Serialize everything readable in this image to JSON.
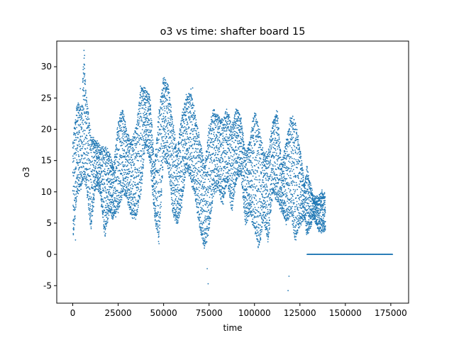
{
  "chart_data": {
    "type": "scatter",
    "title": "o3 vs time: shafter board 15",
    "xlabel": "time",
    "ylabel": "o3",
    "xlim": [
      -8800,
      184800
    ],
    "ylim": [
      -7.8,
      34.1
    ],
    "xticks": [
      0,
      25000,
      50000,
      75000,
      100000,
      125000,
      150000,
      175000
    ],
    "yticks": [
      -5,
      0,
      5,
      10,
      15,
      20,
      25,
      30
    ],
    "grid": false,
    "marker_color": "#1f77b4",
    "series": [
      {
        "values_description": "dense daily-cycle band",
        "envelope": {
          "x": [
            0,
            2500,
            5000,
            6000,
            7500,
            10000,
            12500,
            15000,
            17500,
            20000,
            22500,
            25000,
            27500,
            30000,
            32500,
            35000,
            37500,
            40000,
            42500,
            45000,
            47500,
            50000,
            52500,
            55000,
            57500,
            60000,
            62500,
            65000,
            67500,
            70000,
            72500,
            75000,
            77500,
            80000,
            82500,
            85000,
            87500,
            90000,
            92500,
            95000,
            97500,
            100000,
            102500,
            105000,
            107500,
            110000,
            112500,
            115000,
            117500,
            120000,
            122500,
            125000,
            127500,
            129000,
            130000,
            132500,
            135000,
            137500,
            139000
          ],
          "low": [
            2,
            10,
            11,
            12,
            11,
            4,
            11,
            10,
            3,
            7,
            6,
            7,
            10,
            9,
            6,
            6,
            10,
            18,
            15,
            6,
            2,
            16,
            14,
            7,
            5,
            8,
            14,
            12,
            9,
            4,
            1,
            4,
            10,
            11,
            8,
            12,
            7,
            12,
            13,
            5,
            7,
            4,
            1,
            6,
            2,
            10,
            9,
            7,
            5,
            7,
            2,
            5,
            6,
            3,
            4,
            6,
            4,
            4,
            4
          ],
          "high": [
            18,
            24,
            23,
            32,
            25,
            19,
            18,
            17,
            17,
            16,
            14,
            21,
            23,
            19,
            18,
            20,
            27,
            26,
            25,
            14,
            23,
            28,
            27,
            21,
            16,
            22,
            25,
            26,
            22,
            18,
            14,
            20,
            23,
            22,
            21,
            23,
            20,
            23,
            22,
            16,
            18,
            23,
            20,
            16,
            16,
            21,
            23,
            14,
            18,
            22,
            21,
            17,
            11,
            14,
            12,
            9,
            9,
            10,
            9
          ]
        },
        "outliers": [
          {
            "x": 6200,
            "y": 32.6
          },
          {
            "x": 6500,
            "y": 31.8
          },
          {
            "x": 6600,
            "y": 28.9
          },
          {
            "x": 4200,
            "y": 26.5
          },
          {
            "x": 1500,
            "y": 2.3
          },
          {
            "x": 74500,
            "y": -4.7
          },
          {
            "x": 74000,
            "y": -2.3
          },
          {
            "x": 118500,
            "y": -5.8
          },
          {
            "x": 119000,
            "y": -3.5
          },
          {
            "x": 66000,
            "y": 26.6
          },
          {
            "x": 49800,
            "y": 28.1
          }
        ]
      },
      {
        "values_description": "flat zero segment",
        "x": [
          129000,
          176000
        ],
        "y": [
          0,
          0
        ]
      }
    ]
  }
}
